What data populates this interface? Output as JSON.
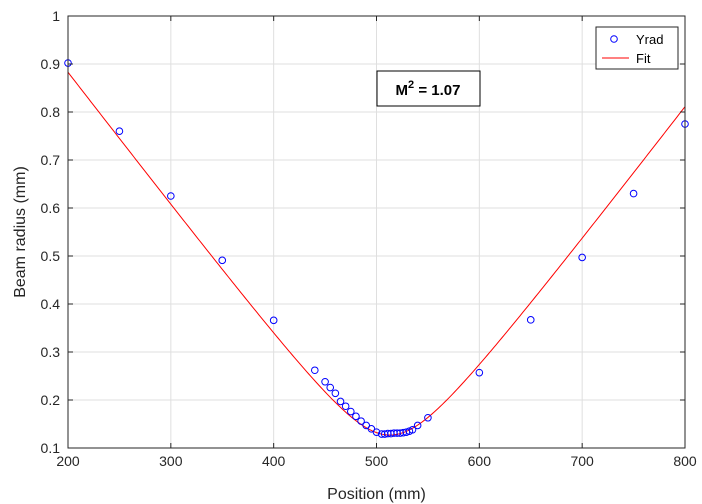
{
  "chart_data": {
    "type": "scatter",
    "xlabel": "Position (mm)",
    "ylabel": "Beam radius (mm)",
    "xlim": [
      200,
      800
    ],
    "ylim": [
      0.1,
      1.0
    ],
    "xticks": [
      200,
      300,
      400,
      500,
      600,
      700,
      800
    ],
    "yticks": [
      0.1,
      0.2,
      0.3,
      0.4,
      0.5,
      0.6,
      0.7,
      0.8,
      0.9,
      1.0
    ],
    "xtick_labels": [
      "200",
      "300",
      "400",
      "500",
      "600",
      "700",
      "800"
    ],
    "ytick_labels": [
      "0.1",
      "0.2",
      "0.3",
      "0.4",
      "0.5",
      "0.6",
      "0.7",
      "0.8",
      "0.9",
      "1"
    ],
    "grid": true,
    "legend_position": "top-right",
    "annotation": {
      "base": "M",
      "sup": "2",
      "rest": " = 1.07"
    },
    "series": [
      {
        "name": "Yrad",
        "kind": "markers",
        "marker": "open-circle",
        "color": "#0000ff",
        "x": [
          200,
          250,
          300,
          350,
          400,
          440,
          450,
          455,
          460,
          465,
          470,
          475,
          480,
          485,
          490,
          495,
          500,
          505,
          508,
          511,
          514,
          517,
          520,
          523,
          526,
          529,
          532,
          535,
          540,
          550,
          600,
          650,
          700,
          750,
          800
        ],
        "y": [
          0.902,
          0.76,
          0.625,
          0.491,
          0.366,
          0.262,
          0.238,
          0.226,
          0.214,
          0.197,
          0.187,
          0.176,
          0.166,
          0.156,
          0.147,
          0.14,
          0.133,
          0.129,
          0.129,
          0.13,
          0.13,
          0.131,
          0.131,
          0.131,
          0.132,
          0.133,
          0.135,
          0.138,
          0.147,
          0.163,
          0.257,
          0.367,
          0.497,
          0.63,
          0.775
        ]
      },
      {
        "name": "Fit",
        "kind": "line",
        "color": "#ff0000",
        "waist_w0": 0.127,
        "waist_z0": 513,
        "rayleigh_zr": 45.5
      }
    ]
  }
}
